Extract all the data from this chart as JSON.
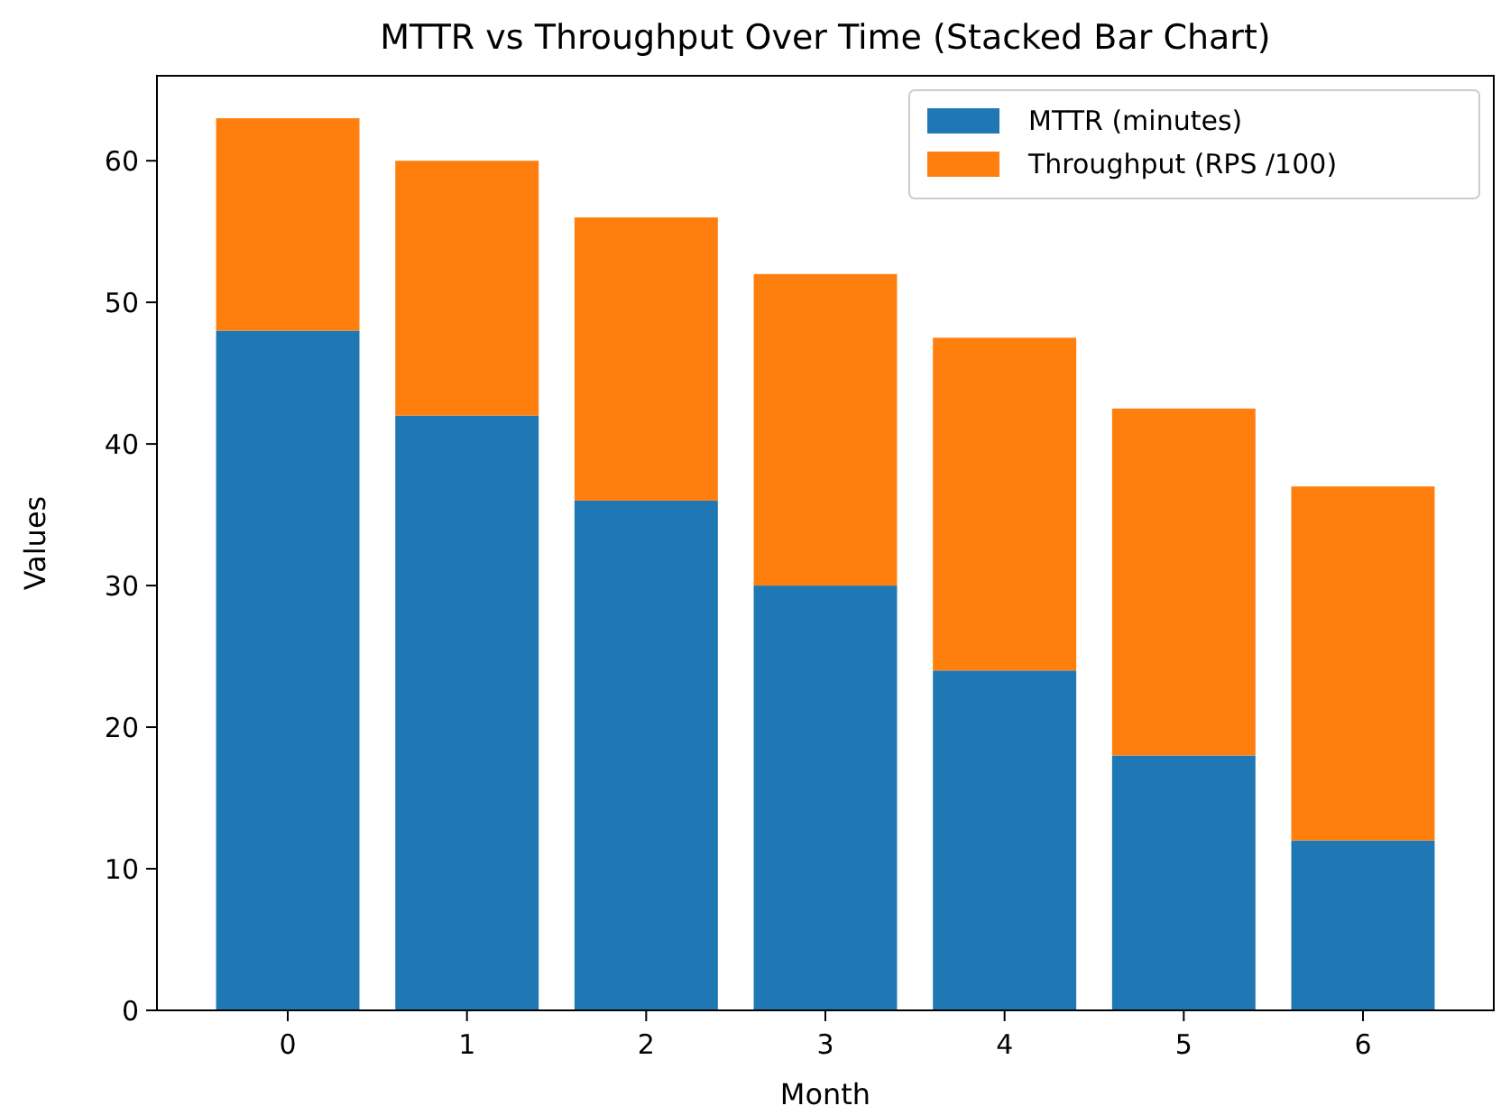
{
  "chart_data": {
    "type": "bar",
    "title": "MTTR vs Throughput Over Time (Stacked Bar Chart)",
    "xlabel": "Month",
    "ylabel": "Values",
    "categories": [
      "0",
      "1",
      "2",
      "3",
      "4",
      "5",
      "6"
    ],
    "series": [
      {
        "name": "MTTR (minutes)",
        "color": "#1f77b4",
        "values": [
          48,
          42,
          36,
          30,
          24,
          18,
          12
        ]
      },
      {
        "name": "Throughput (RPS /100)",
        "color": "#ff7f0e",
        "values": [
          15,
          18,
          20,
          22,
          23.5,
          24.5,
          25
        ]
      }
    ],
    "stacked": true,
    "ylim": [
      0,
      66
    ],
    "yticks": [
      0,
      10,
      20,
      30,
      40,
      50,
      60
    ],
    "legend": "top right"
  }
}
